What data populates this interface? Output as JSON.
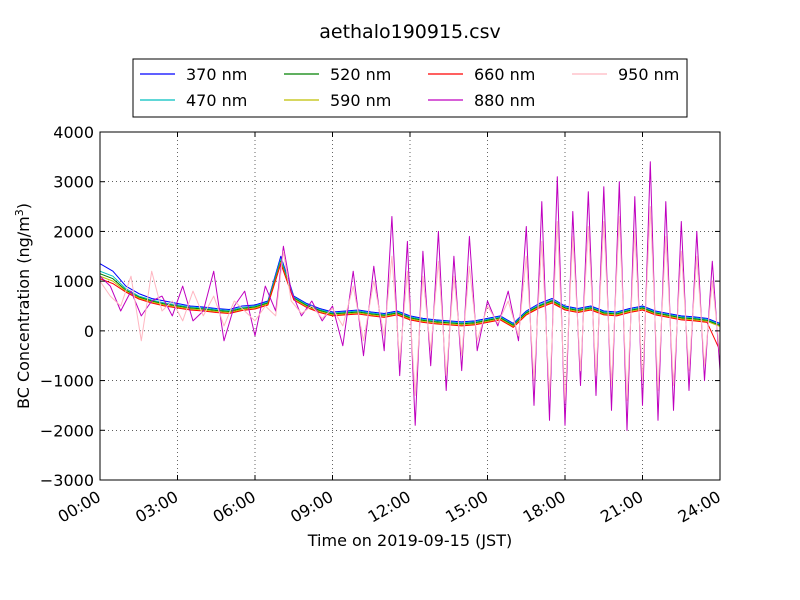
{
  "chart_data": {
    "type": "line",
    "title": "aethalo190915.csv",
    "xlabel": "Time on 2019-09-15 (JST)",
    "ylabel_main": "BC Concentration (ng/m",
    "ylabel_sup": "3",
    "ylabel_close": ")",
    "x_unit": "hours",
    "xlim": [
      0,
      24
    ],
    "ylim": [
      -3000,
      4000
    ],
    "x_ticks": [
      {
        "value": 0,
        "label": "00:00"
      },
      {
        "value": 3,
        "label": "03:00"
      },
      {
        "value": 6,
        "label": "06:00"
      },
      {
        "value": 9,
        "label": "09:00"
      },
      {
        "value": 12,
        "label": "12:00"
      },
      {
        "value": 15,
        "label": "15:00"
      },
      {
        "value": 18,
        "label": "18:00"
      },
      {
        "value": 21,
        "label": "21:00"
      },
      {
        "value": 24,
        "label": "24:00"
      }
    ],
    "y_ticks": [
      {
        "value": 4000,
        "label": "4000"
      },
      {
        "value": 3000,
        "label": "3000"
      },
      {
        "value": 2000,
        "label": "2000"
      },
      {
        "value": 1000,
        "label": "1000"
      },
      {
        "value": 0,
        "label": "0"
      },
      {
        "value": -1000,
        "label": "−1000"
      },
      {
        "value": -2000,
        "label": "−2000"
      },
      {
        "value": -3000,
        "label": "−3000"
      }
    ],
    "grid": true,
    "legend_placement": "top-center",
    "series": [
      {
        "name": "370 nm",
        "color": "#0000ff",
        "x": [
          0,
          0.5,
          1,
          1.5,
          2,
          2.5,
          3,
          3.5,
          4,
          4.5,
          5,
          5.5,
          6,
          6.5,
          7,
          7.5,
          8,
          8.5,
          9,
          9.5,
          10,
          10.5,
          11,
          11.5,
          12,
          12.5,
          13,
          13.5,
          14,
          14.5,
          15,
          15.5,
          16,
          16.5,
          17,
          17.5,
          18,
          18.5,
          19,
          19.5,
          20,
          20.5,
          21,
          21.5,
          22,
          22.5,
          23,
          23.5,
          24
        ],
        "y": [
          1350,
          1200,
          900,
          750,
          650,
          600,
          550,
          500,
          480,
          450,
          430,
          500,
          520,
          600,
          1500,
          700,
          550,
          450,
          380,
          400,
          420,
          380,
          350,
          400,
          300,
          250,
          220,
          200,
          180,
          200,
          250,
          300,
          150,
          400,
          550,
          650,
          500,
          450,
          500,
          400,
          380,
          450,
          500,
          400,
          350,
          300,
          280,
          250,
          150
        ]
      },
      {
        "name": "470 nm",
        "color": "#00bfbf",
        "x": [
          0,
          0.5,
          1,
          1.5,
          2,
          2.5,
          3,
          3.5,
          4,
          4.5,
          5,
          5.5,
          6,
          6.5,
          7,
          7.5,
          8,
          8.5,
          9,
          9.5,
          10,
          10.5,
          11,
          11.5,
          12,
          12.5,
          13,
          13.5,
          14,
          14.5,
          15,
          15.5,
          16,
          16.5,
          17,
          17.5,
          18,
          18.5,
          19,
          19.5,
          20,
          20.5,
          21,
          21.5,
          22,
          22.5,
          23,
          23.5,
          24
        ],
        "y": [
          1200,
          1100,
          850,
          700,
          620,
          560,
          520,
          480,
          460,
          430,
          410,
          470,
          500,
          580,
          1450,
          680,
          530,
          430,
          360,
          380,
          400,
          360,
          330,
          380,
          280,
          230,
          200,
          180,
          160,
          180,
          230,
          280,
          130,
          380,
          520,
          620,
          480,
          430,
          480,
          380,
          360,
          430,
          480,
          380,
          330,
          280,
          260,
          230,
          130
        ]
      },
      {
        "name": "520 nm",
        "color": "#008000",
        "x": [
          0,
          0.5,
          1,
          1.5,
          2,
          2.5,
          3,
          3.5,
          4,
          4.5,
          5,
          5.5,
          6,
          6.5,
          7,
          7.5,
          8,
          8.5,
          9,
          9.5,
          10,
          10.5,
          11,
          11.5,
          12,
          12.5,
          13,
          13.5,
          14,
          14.5,
          15,
          15.5,
          16,
          16.5,
          17,
          17.5,
          18,
          18.5,
          19,
          19.5,
          20,
          20.5,
          21,
          21.5,
          22,
          22.5,
          23,
          23.5,
          24
        ],
        "y": [
          1150,
          1050,
          820,
          680,
          600,
          540,
          500,
          460,
          440,
          410,
          390,
          450,
          480,
          560,
          1400,
          660,
          510,
          410,
          340,
          360,
          380,
          340,
          310,
          360,
          260,
          210,
          180,
          160,
          140,
          160,
          210,
          260,
          110,
          360,
          500,
          600,
          460,
          410,
          460,
          360,
          340,
          410,
          460,
          360,
          310,
          260,
          240,
          210,
          110
        ]
      },
      {
        "name": "590 nm",
        "color": "#bfbf00",
        "x": [
          0,
          0.5,
          1,
          1.5,
          2,
          2.5,
          3,
          3.5,
          4,
          4.5,
          5,
          5.5,
          6,
          6.5,
          7,
          7.5,
          8,
          8.5,
          9,
          9.5,
          10,
          10.5,
          11,
          11.5,
          12,
          12.5,
          13,
          13.5,
          14,
          14.5,
          15,
          15.5,
          16,
          16.5,
          17,
          17.5,
          18,
          18.5,
          19,
          19.5,
          20,
          20.5,
          21,
          21.5,
          22,
          22.5,
          23,
          23.5,
          24
        ],
        "y": [
          1100,
          1000,
          800,
          660,
          580,
          520,
          480,
          440,
          420,
          390,
          370,
          430,
          460,
          540,
          1380,
          640,
          490,
          390,
          320,
          340,
          360,
          320,
          290,
          340,
          240,
          190,
          160,
          140,
          120,
          140,
          190,
          240,
          90,
          340,
          480,
          580,
          440,
          390,
          440,
          340,
          320,
          390,
          440,
          340,
          290,
          240,
          220,
          190,
          90
        ]
      },
      {
        "name": "660 nm",
        "color": "#ff0000",
        "x": [
          0,
          0.5,
          1,
          1.5,
          2,
          2.5,
          3,
          3.5,
          4,
          4.5,
          5,
          5.5,
          6,
          6.5,
          7,
          7.5,
          8,
          8.5,
          9,
          9.5,
          10,
          10.5,
          11,
          11.5,
          12,
          12.5,
          13,
          13.5,
          14,
          14.5,
          15,
          15.5,
          16,
          16.5,
          17,
          17.5,
          18,
          18.5,
          19,
          19.5,
          20,
          20.5,
          21,
          21.5,
          22,
          22.5,
          23,
          23.5,
          24
        ],
        "y": [
          1050,
          950,
          780,
          640,
          560,
          500,
          460,
          420,
          400,
          370,
          350,
          410,
          440,
          520,
          1350,
          620,
          470,
          370,
          300,
          320,
          340,
          300,
          270,
          320,
          220,
          170,
          140,
          120,
          100,
          120,
          170,
          220,
          70,
          320,
          460,
          560,
          420,
          370,
          420,
          320,
          300,
          370,
          420,
          320,
          270,
          220,
          200,
          170,
          -400
        ]
      },
      {
        "name": "880 nm",
        "color": "#bf00bf",
        "x": [
          0,
          0.4,
          0.8,
          1.2,
          1.6,
          2,
          2.4,
          2.8,
          3.2,
          3.6,
          4,
          4.4,
          4.8,
          5.2,
          5.6,
          6,
          6.4,
          6.8,
          7.1,
          7.4,
          7.8,
          8.2,
          8.6,
          9,
          9.4,
          9.8,
          10.2,
          10.6,
          11,
          11.3,
          11.6,
          11.9,
          12.2,
          12.5,
          12.8,
          13.1,
          13.4,
          13.7,
          14,
          14.3,
          14.6,
          15,
          15.4,
          15.8,
          16.2,
          16.5,
          16.8,
          17.1,
          17.4,
          17.7,
          18,
          18.3,
          18.6,
          18.9,
          19.2,
          19.5,
          19.8,
          20.1,
          20.4,
          20.7,
          21,
          21.3,
          21.6,
          21.9,
          22.2,
          22.5,
          22.8,
          23.1,
          23.4,
          23.7,
          24
        ],
        "y": [
          1100,
          900,
          400,
          800,
          300,
          600,
          700,
          300,
          900,
          200,
          400,
          1200,
          -200,
          500,
          800,
          -100,
          900,
          400,
          1700,
          800,
          300,
          600,
          200,
          500,
          -300,
          1200,
          -500,
          1300,
          -400,
          2300,
          -900,
          1800,
          -1900,
          1600,
          -700,
          2000,
          -1200,
          1500,
          -800,
          1900,
          -400,
          600,
          100,
          800,
          -200,
          2100,
          -1500,
          2600,
          -1800,
          3100,
          -1900,
          2400,
          -1100,
          2800,
          -1300,
          2900,
          -1600,
          3000,
          -2000,
          2700,
          -1500,
          3400,
          -1800,
          2600,
          -1600,
          2200,
          -1200,
          2000,
          -1000,
          1400,
          -800
        ]
      },
      {
        "name": "950 nm",
        "color": "#ffb6c1",
        "x": [
          0,
          0.4,
          0.8,
          1.2,
          1.6,
          2,
          2.4,
          2.8,
          3.2,
          3.6,
          4,
          4.4,
          4.8,
          5.2,
          5.6,
          6,
          6.4,
          6.8,
          7.1,
          7.4,
          7.8,
          8.2,
          8.6,
          9,
          9.4,
          9.8,
          10.2,
          10.6,
          11,
          11.3,
          11.6,
          11.9,
          12.2,
          12.5,
          12.8,
          13.1,
          13.4,
          13.7,
          14,
          14.3,
          14.6,
          15,
          15.4,
          15.8,
          16.2,
          16.5,
          16.8,
          17.1,
          17.4,
          17.7,
          18,
          18.3,
          18.6,
          18.9,
          19.2,
          19.5,
          19.8,
          20.1,
          20.4,
          20.7,
          21,
          21.3,
          21.6,
          21.9,
          22.2,
          22.5,
          22.8,
          23.1,
          23.4,
          23.7,
          24
        ],
        "y": [
          1000,
          700,
          500,
          1100,
          -200,
          1200,
          400,
          600,
          200,
          800,
          300,
          700,
          100,
          600,
          400,
          200,
          500,
          300,
          1600,
          600,
          350,
          500,
          250,
          450,
          100,
          900,
          -200,
          1000,
          -100,
          1500,
          -600,
          1200,
          -1300,
          1100,
          -400,
          1400,
          -900,
          1100,
          -500,
          1300,
          -200,
          500,
          150,
          600,
          -100,
          1500,
          -1000,
          1800,
          -1300,
          2200,
          -1400,
          1900,
          -800,
          2100,
          -900,
          2200,
          -1100,
          2300,
          -1400,
          2000,
          -1000,
          2500,
          -1200,
          1900,
          -1100,
          1600,
          -800,
          1500,
          -700,
          1000,
          -500
        ]
      }
    ]
  }
}
